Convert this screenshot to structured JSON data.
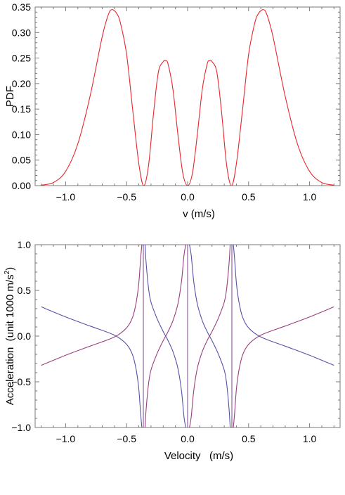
{
  "chart_data": [
    {
      "type": "line",
      "xlabel": "v (m/s)",
      "ylabel": "PDF",
      "xlim": [
        -1.25,
        1.25
      ],
      "ylim": [
        0,
        0.35
      ],
      "x_ticks": [
        -1.0,
        -0.5,
        0.0,
        0.5,
        1.0
      ],
      "x_tick_labels": [
        "−1.0",
        "−0.5",
        "0.0",
        "0.5",
        "1.0"
      ],
      "y_ticks": [
        0,
        0.05,
        0.1,
        0.15,
        0.2,
        0.25,
        0.3,
        0.35
      ],
      "y_tick_labels": [
        "0.00",
        "0.05",
        "0.10",
        "0.15",
        "0.20",
        "0.25",
        "0.30",
        "0.35"
      ],
      "grid": false,
      "series": [
        {
          "color": "#e8262b",
          "x": [
            -1.2,
            -1.1,
            -1.0,
            -0.9,
            -0.8,
            -0.7,
            -0.65,
            -0.62,
            -0.58,
            -0.55,
            -0.5,
            -0.45,
            -0.4,
            -0.36,
            -0.32,
            -0.28,
            -0.24,
            -0.2,
            -0.18,
            -0.16,
            -0.12,
            -0.08,
            -0.04,
            0.0,
            0.04,
            0.08,
            0.12,
            0.16,
            0.18,
            0.2,
            0.24,
            0.28,
            0.32,
            0.36,
            0.4,
            0.45,
            0.5,
            0.55,
            0.58,
            0.62,
            0.65,
            0.7,
            0.8,
            0.9,
            1.0,
            1.1,
            1.2
          ],
          "y": [
            0.001,
            0.006,
            0.028,
            0.082,
            0.175,
            0.292,
            0.335,
            0.345,
            0.337,
            0.318,
            0.257,
            0.148,
            0.043,
            0.0,
            0.04,
            0.14,
            0.222,
            0.243,
            0.245,
            0.238,
            0.188,
            0.101,
            0.025,
            0.0,
            0.025,
            0.101,
            0.188,
            0.238,
            0.245,
            0.243,
            0.222,
            0.14,
            0.04,
            0.0,
            0.043,
            0.148,
            0.257,
            0.318,
            0.337,
            0.345,
            0.335,
            0.292,
            0.175,
            0.082,
            0.028,
            0.006,
            0.001
          ]
        }
      ]
    },
    {
      "type": "line",
      "xlabel": "Velocity   (m/s)",
      "ylabel": "Acceleration  (unit 1000 m/s",
      "ylabel_sup": "2",
      "ylabel_tail": ")",
      "xlim": [
        -1.25,
        1.25
      ],
      "ylim": [
        -1,
        1
      ],
      "x_ticks": [
        -1.0,
        -0.5,
        0.0,
        0.5,
        1.0
      ],
      "x_tick_labels": [
        "−1.0",
        "−0.5",
        "0.0",
        "0.5",
        "1.0"
      ],
      "y_ticks": [
        -1.0,
        -0.5,
        0.0,
        0.5,
        1.0
      ],
      "y_tick_labels": [
        "−1.0",
        "−0.5",
        "0.0",
        "0.5",
        "1.0"
      ],
      "grid": false,
      "poles": [
        -0.363,
        0.0,
        0.363
      ],
      "series": [
        {
          "color": "#5552a8",
          "x": [
            -1.2,
            -1.0,
            -0.8,
            -0.6,
            -0.5,
            -0.45,
            -0.42,
            -0.4,
            -0.385,
            -0.375,
            -0.349,
            -0.34,
            -0.32,
            -0.3,
            -0.25,
            -0.2,
            -0.18,
            -0.16,
            -0.12,
            -0.08,
            -0.05,
            -0.03,
            -0.015,
            0.015,
            0.03,
            0.05,
            0.08,
            0.12,
            0.16,
            0.18,
            0.2,
            0.25,
            0.3,
            0.32,
            0.34,
            0.349,
            0.375,
            0.385,
            0.4,
            0.42,
            0.45,
            0.5,
            0.6,
            0.8,
            1.0,
            1.2
          ],
          "y": [
            0.32,
            0.21,
            0.11,
            0.01,
            -0.09,
            -0.21,
            -0.38,
            -0.58,
            -0.85,
            -1.0,
            1.0,
            0.8,
            0.52,
            0.37,
            0.19,
            0.05,
            0.0,
            -0.05,
            -0.17,
            -0.35,
            -0.6,
            -0.88,
            -1.0,
            1.0,
            0.88,
            0.6,
            0.35,
            0.17,
            0.05,
            0.0,
            -0.05,
            -0.19,
            -0.37,
            -0.52,
            -0.8,
            -1.0,
            1.0,
            0.85,
            0.58,
            0.38,
            0.21,
            0.09,
            -0.01,
            -0.11,
            -0.21,
            -0.32
          ]
        },
        {
          "color": "#9a3f7e",
          "x": [
            -1.2,
            -1.0,
            -0.8,
            -0.6,
            -0.5,
            -0.45,
            -0.42,
            -0.4,
            -0.385,
            -0.375,
            -0.349,
            -0.34,
            -0.32,
            -0.3,
            -0.25,
            -0.2,
            -0.18,
            -0.16,
            -0.12,
            -0.08,
            -0.05,
            -0.03,
            -0.015,
            0.015,
            0.03,
            0.05,
            0.08,
            0.12,
            0.16,
            0.18,
            0.2,
            0.25,
            0.3,
            0.32,
            0.34,
            0.349,
            0.375,
            0.385,
            0.4,
            0.42,
            0.45,
            0.5,
            0.6,
            0.8,
            1.0,
            1.2
          ],
          "y": [
            -0.32,
            -0.21,
            -0.11,
            -0.01,
            0.09,
            0.21,
            0.38,
            0.58,
            0.85,
            1.0,
            -1.0,
            -0.8,
            -0.52,
            -0.37,
            -0.19,
            -0.05,
            0.0,
            0.05,
            0.17,
            0.35,
            0.6,
            0.88,
            1.0,
            -1.0,
            -0.88,
            -0.6,
            -0.35,
            -0.17,
            -0.05,
            0.0,
            0.05,
            0.19,
            0.37,
            0.52,
            0.8,
            1.0,
            -1.0,
            -0.85,
            -0.58,
            -0.38,
            -0.21,
            -0.09,
            0.01,
            0.11,
            0.21,
            0.32
          ]
        }
      ]
    }
  ]
}
